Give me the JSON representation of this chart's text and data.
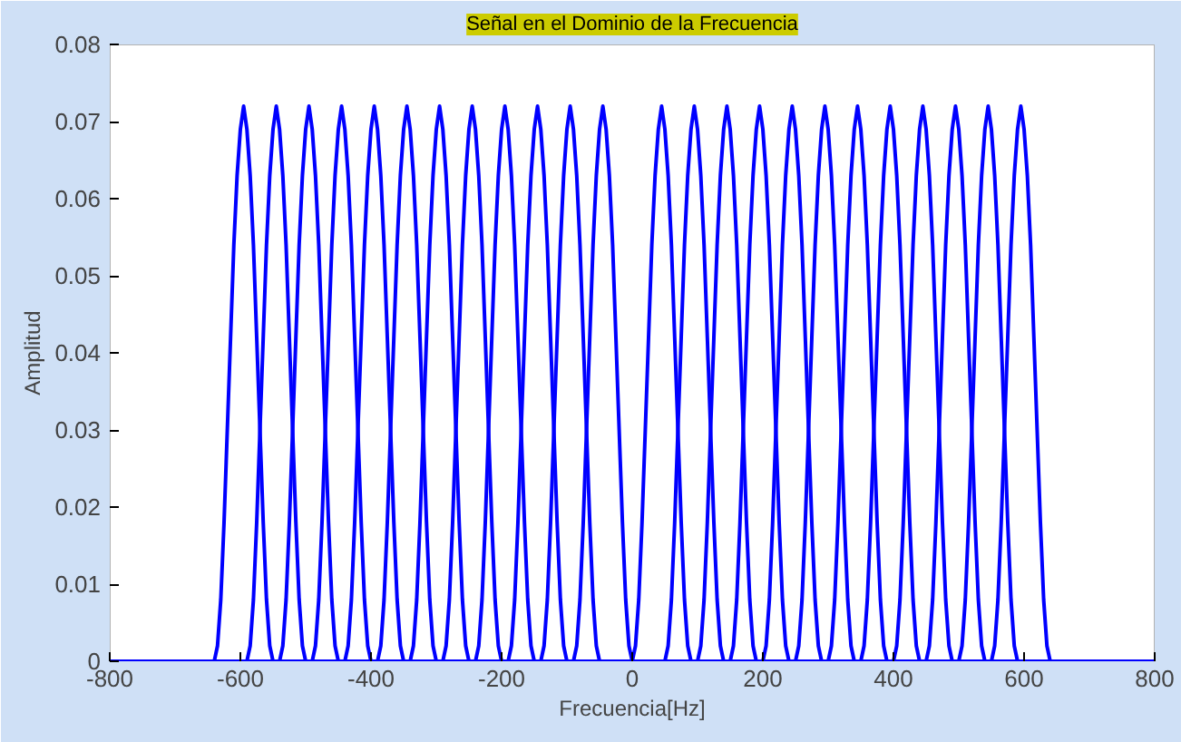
{
  "chart_data": {
    "type": "line",
    "title": "Señal en el Dominio de la Frecuencia",
    "xlabel": "Frecuencia[Hz]",
    "ylabel": "Amplitud",
    "xlim": [
      -800,
      800
    ],
    "ylim": [
      0,
      0.08
    ],
    "xticks": [
      -800,
      -600,
      -400,
      -200,
      0,
      200,
      400,
      600,
      800
    ],
    "yticks": [
      0,
      0.01,
      0.02,
      0.03,
      0.04,
      0.05,
      0.06,
      0.07,
      0.08
    ],
    "series": [
      {
        "color": "#0000ff",
        "x": [
          -800,
          800
        ],
        "values": [
          0,
          0
        ]
      },
      {
        "color": "#0000ff",
        "x": [
          -640,
          -635,
          -630,
          -625,
          -620,
          -615,
          -610,
          -605,
          -600,
          -595,
          -590,
          -585,
          -580,
          -575,
          -570,
          -565,
          -560,
          -555,
          -550
        ],
        "values": [
          0,
          0.002,
          0.008,
          0.018,
          0.03,
          0.042,
          0.054,
          0.063,
          0.069,
          0.072,
          0.069,
          0.063,
          0.054,
          0.042,
          0.03,
          0.018,
          0.008,
          0.002,
          0
        ]
      },
      {
        "color": "#0000ff",
        "x": [
          -590,
          -585,
          -580,
          -575,
          -570,
          -565,
          -560,
          -555,
          -550,
          -545,
          -540,
          -535,
          -530,
          -525,
          -520,
          -515,
          -510,
          -505,
          -500
        ],
        "values": [
          0,
          0.002,
          0.008,
          0.018,
          0.03,
          0.042,
          0.054,
          0.063,
          0.069,
          0.072,
          0.069,
          0.063,
          0.054,
          0.042,
          0.03,
          0.018,
          0.008,
          0.002,
          0
        ]
      },
      {
        "color": "#0000ff",
        "x": [
          -540,
          -535,
          -530,
          -525,
          -520,
          -515,
          -510,
          -505,
          -500,
          -495,
          -490,
          -485,
          -480,
          -475,
          -470,
          -465,
          -460,
          -455,
          -450
        ],
        "values": [
          0,
          0.002,
          0.008,
          0.018,
          0.03,
          0.042,
          0.054,
          0.063,
          0.069,
          0.072,
          0.069,
          0.063,
          0.054,
          0.042,
          0.03,
          0.018,
          0.008,
          0.002,
          0
        ]
      },
      {
        "color": "#0000ff",
        "x": [
          -490,
          -485,
          -480,
          -475,
          -470,
          -465,
          -460,
          -455,
          -450,
          -445,
          -440,
          -435,
          -430,
          -425,
          -420,
          -415,
          -410,
          -405,
          -400
        ],
        "values": [
          0,
          0.002,
          0.008,
          0.018,
          0.03,
          0.042,
          0.054,
          0.063,
          0.069,
          0.072,
          0.069,
          0.063,
          0.054,
          0.042,
          0.03,
          0.018,
          0.008,
          0.002,
          0
        ]
      },
      {
        "color": "#0000ff",
        "x": [
          -440,
          -435,
          -430,
          -425,
          -420,
          -415,
          -410,
          -405,
          -400,
          -395,
          -390,
          -385,
          -380,
          -375,
          -370,
          -365,
          -360,
          -355,
          -350
        ],
        "values": [
          0,
          0.002,
          0.008,
          0.018,
          0.03,
          0.042,
          0.054,
          0.063,
          0.069,
          0.072,
          0.069,
          0.063,
          0.054,
          0.042,
          0.03,
          0.018,
          0.008,
          0.002,
          0
        ]
      },
      {
        "color": "#0000ff",
        "x": [
          -390,
          -385,
          -380,
          -375,
          -370,
          -365,
          -360,
          -355,
          -350,
          -345,
          -340,
          -335,
          -330,
          -325,
          -320,
          -315,
          -310,
          -305,
          -300
        ],
        "values": [
          0,
          0.002,
          0.008,
          0.018,
          0.03,
          0.042,
          0.054,
          0.063,
          0.069,
          0.072,
          0.069,
          0.063,
          0.054,
          0.042,
          0.03,
          0.018,
          0.008,
          0.002,
          0
        ]
      },
      {
        "color": "#0000ff",
        "x": [
          -340,
          -335,
          -330,
          -325,
          -320,
          -315,
          -310,
          -305,
          -300,
          -295,
          -290,
          -285,
          -280,
          -275,
          -270,
          -265,
          -260,
          -255,
          -250
        ],
        "values": [
          0,
          0.002,
          0.008,
          0.018,
          0.03,
          0.042,
          0.054,
          0.063,
          0.069,
          0.072,
          0.069,
          0.063,
          0.054,
          0.042,
          0.03,
          0.018,
          0.008,
          0.002,
          0
        ]
      },
      {
        "color": "#0000ff",
        "x": [
          -290,
          -285,
          -280,
          -275,
          -270,
          -265,
          -260,
          -255,
          -250,
          -245,
          -240,
          -235,
          -230,
          -225,
          -220,
          -215,
          -210,
          -205,
          -200
        ],
        "values": [
          0,
          0.002,
          0.008,
          0.018,
          0.03,
          0.042,
          0.054,
          0.063,
          0.069,
          0.072,
          0.069,
          0.063,
          0.054,
          0.042,
          0.03,
          0.018,
          0.008,
          0.002,
          0
        ]
      },
      {
        "color": "#0000ff",
        "x": [
          -240,
          -235,
          -230,
          -225,
          -220,
          -215,
          -210,
          -205,
          -200,
          -195,
          -190,
          -185,
          -180,
          -175,
          -170,
          -165,
          -160,
          -155,
          -150
        ],
        "values": [
          0,
          0.002,
          0.008,
          0.018,
          0.03,
          0.042,
          0.054,
          0.063,
          0.069,
          0.072,
          0.069,
          0.063,
          0.054,
          0.042,
          0.03,
          0.018,
          0.008,
          0.002,
          0
        ]
      },
      {
        "color": "#0000ff",
        "x": [
          -190,
          -185,
          -180,
          -175,
          -170,
          -165,
          -160,
          -155,
          -150,
          -145,
          -140,
          -135,
          -130,
          -125,
          -120,
          -115,
          -110,
          -105,
          -100
        ],
        "values": [
          0,
          0.002,
          0.008,
          0.018,
          0.03,
          0.042,
          0.054,
          0.063,
          0.069,
          0.072,
          0.069,
          0.063,
          0.054,
          0.042,
          0.03,
          0.018,
          0.008,
          0.002,
          0
        ]
      },
      {
        "color": "#0000ff",
        "x": [
          -140,
          -135,
          -130,
          -125,
          -120,
          -115,
          -110,
          -105,
          -100,
          -95,
          -90,
          -85,
          -80,
          -75,
          -70,
          -65,
          -60,
          -55,
          -50
        ],
        "values": [
          0,
          0.002,
          0.008,
          0.018,
          0.03,
          0.042,
          0.054,
          0.063,
          0.069,
          0.072,
          0.069,
          0.063,
          0.054,
          0.042,
          0.03,
          0.018,
          0.008,
          0.002,
          0
        ]
      },
      {
        "color": "#0000ff",
        "x": [
          -90,
          -85,
          -80,
          -75,
          -70,
          -65,
          -60,
          -55,
          -50,
          -45,
          -40,
          -35,
          -30,
          -25,
          -20,
          -15,
          -10,
          -5,
          0
        ],
        "values": [
          0,
          0.002,
          0.008,
          0.018,
          0.03,
          0.042,
          0.054,
          0.063,
          0.069,
          0.072,
          0.069,
          0.063,
          0.054,
          0.042,
          0.03,
          0.018,
          0.008,
          0.002,
          0
        ]
      },
      {
        "color": "#0000ff",
        "x": [
          0,
          5,
          10,
          15,
          20,
          25,
          30,
          35,
          40,
          45,
          50,
          55,
          60,
          65,
          70,
          75,
          80,
          85,
          90
        ],
        "values": [
          0,
          0.002,
          0.008,
          0.018,
          0.03,
          0.042,
          0.054,
          0.063,
          0.069,
          0.072,
          0.069,
          0.063,
          0.054,
          0.042,
          0.03,
          0.018,
          0.008,
          0.002,
          0
        ]
      },
      {
        "color": "#0000ff",
        "x": [
          50,
          55,
          60,
          65,
          70,
          75,
          80,
          85,
          90,
          95,
          100,
          105,
          110,
          115,
          120,
          125,
          130,
          135,
          140
        ],
        "values": [
          0,
          0.002,
          0.008,
          0.018,
          0.03,
          0.042,
          0.054,
          0.063,
          0.069,
          0.072,
          0.069,
          0.063,
          0.054,
          0.042,
          0.03,
          0.018,
          0.008,
          0.002,
          0
        ]
      },
      {
        "color": "#0000ff",
        "x": [
          100,
          105,
          110,
          115,
          120,
          125,
          130,
          135,
          140,
          145,
          150,
          155,
          160,
          165,
          170,
          175,
          180,
          185,
          190
        ],
        "values": [
          0,
          0.002,
          0.008,
          0.018,
          0.03,
          0.042,
          0.054,
          0.063,
          0.069,
          0.072,
          0.069,
          0.063,
          0.054,
          0.042,
          0.03,
          0.018,
          0.008,
          0.002,
          0
        ]
      },
      {
        "color": "#0000ff",
        "x": [
          150,
          155,
          160,
          165,
          170,
          175,
          180,
          185,
          190,
          195,
          200,
          205,
          210,
          215,
          220,
          225,
          230,
          235,
          240
        ],
        "values": [
          0,
          0.002,
          0.008,
          0.018,
          0.03,
          0.042,
          0.054,
          0.063,
          0.069,
          0.072,
          0.069,
          0.063,
          0.054,
          0.042,
          0.03,
          0.018,
          0.008,
          0.002,
          0
        ]
      },
      {
        "color": "#0000ff",
        "x": [
          200,
          205,
          210,
          215,
          220,
          225,
          230,
          235,
          240,
          245,
          250,
          255,
          260,
          265,
          270,
          275,
          280,
          285,
          290
        ],
        "values": [
          0,
          0.002,
          0.008,
          0.018,
          0.03,
          0.042,
          0.054,
          0.063,
          0.069,
          0.072,
          0.069,
          0.063,
          0.054,
          0.042,
          0.03,
          0.018,
          0.008,
          0.002,
          0
        ]
      },
      {
        "color": "#0000ff",
        "x": [
          250,
          255,
          260,
          265,
          270,
          275,
          280,
          285,
          290,
          295,
          300,
          305,
          310,
          315,
          320,
          325,
          330,
          335,
          340
        ],
        "values": [
          0,
          0.002,
          0.008,
          0.018,
          0.03,
          0.042,
          0.054,
          0.063,
          0.069,
          0.072,
          0.069,
          0.063,
          0.054,
          0.042,
          0.03,
          0.018,
          0.008,
          0.002,
          0
        ]
      },
      {
        "color": "#0000ff",
        "x": [
          300,
          305,
          310,
          315,
          320,
          325,
          330,
          335,
          340,
          345,
          350,
          355,
          360,
          365,
          370,
          375,
          380,
          385,
          390
        ],
        "values": [
          0,
          0.002,
          0.008,
          0.018,
          0.03,
          0.042,
          0.054,
          0.063,
          0.069,
          0.072,
          0.069,
          0.063,
          0.054,
          0.042,
          0.03,
          0.018,
          0.008,
          0.002,
          0
        ]
      },
      {
        "color": "#0000ff",
        "x": [
          350,
          355,
          360,
          365,
          370,
          375,
          380,
          385,
          390,
          395,
          400,
          405,
          410,
          415,
          420,
          425,
          430,
          435,
          440
        ],
        "values": [
          0,
          0.002,
          0.008,
          0.018,
          0.03,
          0.042,
          0.054,
          0.063,
          0.069,
          0.072,
          0.069,
          0.063,
          0.054,
          0.042,
          0.03,
          0.018,
          0.008,
          0.002,
          0
        ]
      },
      {
        "color": "#0000ff",
        "x": [
          400,
          405,
          410,
          415,
          420,
          425,
          430,
          435,
          440,
          445,
          450,
          455,
          460,
          465,
          470,
          475,
          480,
          485,
          490
        ],
        "values": [
          0,
          0.002,
          0.008,
          0.018,
          0.03,
          0.042,
          0.054,
          0.063,
          0.069,
          0.072,
          0.069,
          0.063,
          0.054,
          0.042,
          0.03,
          0.018,
          0.008,
          0.002,
          0
        ]
      },
      {
        "color": "#0000ff",
        "x": [
          450,
          455,
          460,
          465,
          470,
          475,
          480,
          485,
          490,
          495,
          500,
          505,
          510,
          515,
          520,
          525,
          530,
          535,
          540
        ],
        "values": [
          0,
          0.002,
          0.008,
          0.018,
          0.03,
          0.042,
          0.054,
          0.063,
          0.069,
          0.072,
          0.069,
          0.063,
          0.054,
          0.042,
          0.03,
          0.018,
          0.008,
          0.002,
          0
        ]
      },
      {
        "color": "#0000ff",
        "x": [
          500,
          505,
          510,
          515,
          520,
          525,
          530,
          535,
          540,
          545,
          550,
          555,
          560,
          565,
          570,
          575,
          580,
          585,
          590
        ],
        "values": [
          0,
          0.002,
          0.008,
          0.018,
          0.03,
          0.042,
          0.054,
          0.063,
          0.069,
          0.072,
          0.069,
          0.063,
          0.054,
          0.042,
          0.03,
          0.018,
          0.008,
          0.002,
          0
        ]
      },
      {
        "color": "#0000ff",
        "x": [
          550,
          555,
          560,
          565,
          570,
          575,
          580,
          585,
          590,
          595,
          600,
          605,
          610,
          615,
          620,
          625,
          630,
          635,
          640
        ],
        "values": [
          0,
          0.002,
          0.008,
          0.018,
          0.03,
          0.042,
          0.054,
          0.063,
          0.069,
          0.072,
          0.069,
          0.063,
          0.054,
          0.042,
          0.03,
          0.018,
          0.008,
          0.002,
          0
        ]
      }
    ]
  }
}
